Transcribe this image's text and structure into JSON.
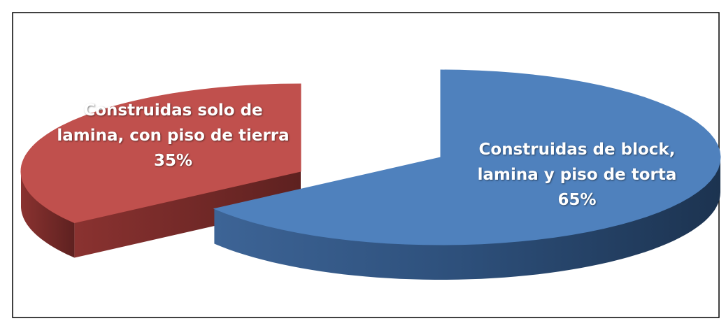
{
  "chart_data": {
    "type": "pie",
    "categories": [
      "Construidas de block, lamina y piso de torta",
      "Construidas solo de lamina, con piso de tierra"
    ],
    "values": [
      65,
      35
    ],
    "value_labels": [
      "65%",
      "35%"
    ],
    "colors": [
      "#4f81bd",
      "#c0504d"
    ]
  }
}
